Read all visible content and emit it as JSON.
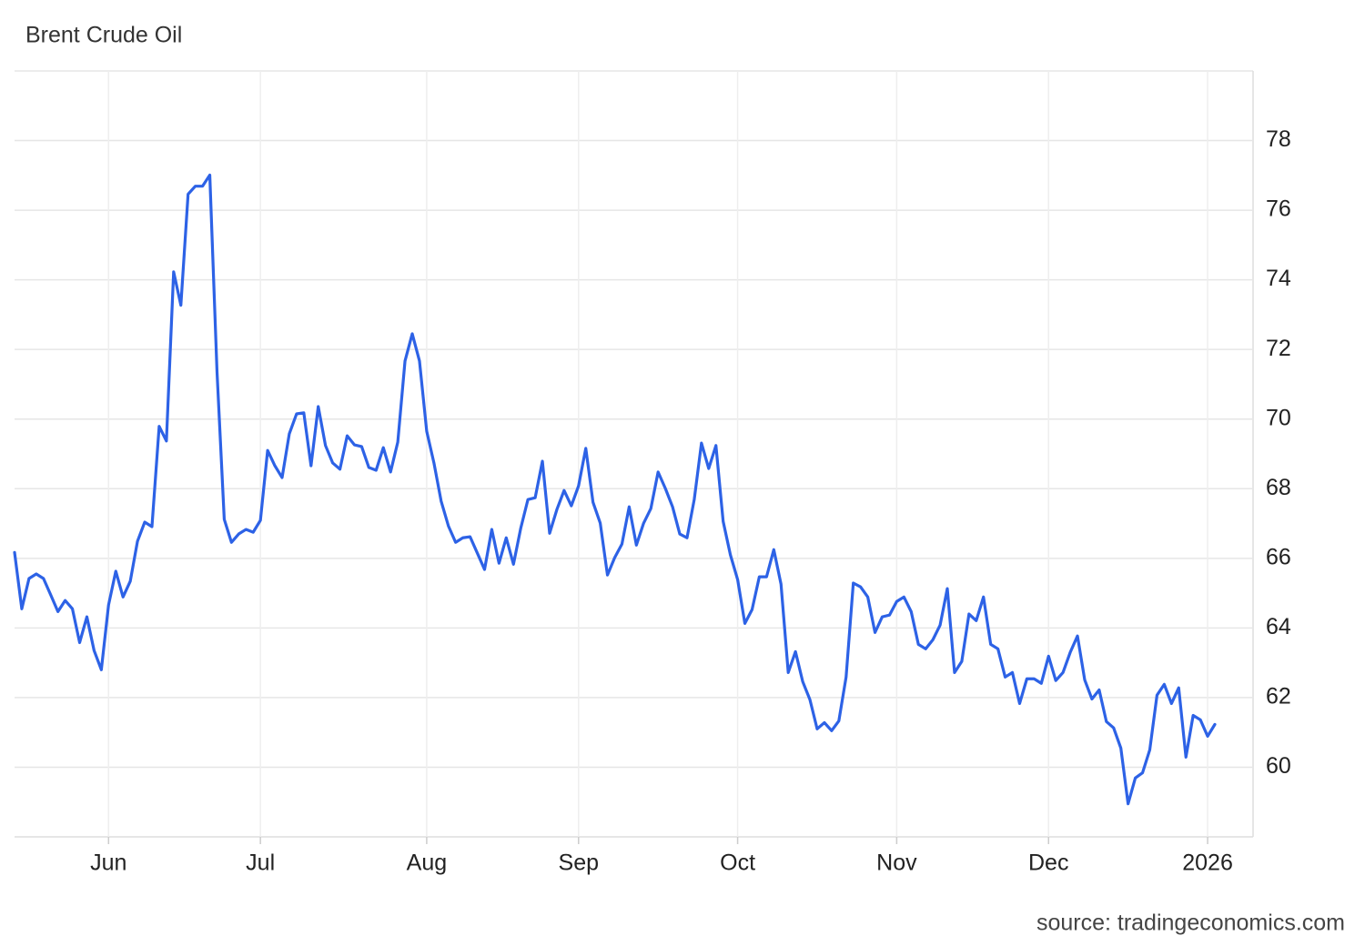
{
  "chart_data": {
    "type": "line",
    "title": "Brent Crude Oil",
    "source": "source: tradingeconomics.com",
    "categories": [
      null,
      null,
      null,
      null,
      null,
      null,
      null,
      null,
      null,
      null,
      null,
      null,
      null,
      "Jun",
      null,
      null,
      null,
      null,
      null,
      null,
      null,
      null,
      null,
      null,
      null,
      null,
      null,
      null,
      null,
      null,
      null,
      null,
      null,
      null,
      "Jul",
      null,
      null,
      null,
      null,
      null,
      null,
      null,
      null,
      null,
      null,
      null,
      null,
      null,
      null,
      null,
      null,
      null,
      null,
      null,
      null,
      null,
      null,
      "Aug",
      null,
      null,
      null,
      null,
      null,
      null,
      null,
      null,
      null,
      null,
      null,
      null,
      null,
      null,
      null,
      null,
      null,
      null,
      null,
      null,
      "Sep",
      null,
      null,
      null,
      null,
      null,
      null,
      null,
      null,
      null,
      null,
      null,
      null,
      null,
      null,
      null,
      null,
      null,
      null,
      null,
      null,
      null,
      "Oct",
      null,
      null,
      null,
      null,
      null,
      null,
      null,
      null,
      null,
      null,
      null,
      null,
      null,
      null,
      null,
      null,
      null,
      null,
      null,
      null,
      null,
      "Nov",
      null,
      null,
      null,
      null,
      null,
      null,
      null,
      null,
      null,
      null,
      null,
      null,
      null,
      null,
      null,
      null,
      null,
      null,
      null,
      null,
      "Dec",
      null,
      null,
      null,
      null,
      null,
      null,
      null,
      null,
      null,
      null,
      null,
      null,
      null,
      null,
      null,
      null,
      null,
      null,
      null,
      null,
      null,
      "2026",
      null
    ],
    "series": [
      {
        "name": "Brent Crude Oil",
        "color": "#2d62e6",
        "values": [
          66.17,
          64.55,
          65.42,
          65.55,
          65.42,
          64.95,
          64.47,
          64.79,
          64.55,
          63.58,
          64.32,
          63.35,
          62.8,
          64.66,
          65.63,
          64.89,
          65.34,
          66.49,
          67.04,
          66.91,
          69.79,
          69.37,
          74.23,
          73.27,
          76.46,
          76.69,
          76.69,
          77.01,
          71.36,
          67.12,
          66.46,
          66.7,
          66.83,
          66.75,
          67.09,
          69.1,
          68.66,
          68.32,
          69.58,
          70.15,
          70.18,
          68.66,
          70.36,
          69.24,
          68.74,
          68.56,
          69.52,
          69.26,
          69.21,
          68.61,
          68.53,
          69.18,
          68.48,
          69.34,
          71.67,
          72.45,
          71.67,
          69.65,
          68.74,
          67.64,
          66.93,
          66.46,
          66.59,
          66.62,
          66.15,
          65.68,
          66.83,
          65.86,
          66.59,
          65.83,
          66.86,
          67.69,
          67.74,
          68.79,
          66.72,
          67.4,
          67.95,
          67.51,
          68.08,
          69.16,
          67.61,
          67.01,
          65.52,
          66.02,
          66.41,
          67.48,
          66.38,
          67.01,
          67.43,
          68.48,
          68.01,
          67.48,
          66.7,
          66.59,
          67.69,
          69.31,
          68.58,
          69.24,
          67.06,
          66.1,
          65.39,
          64.13,
          64.53,
          65.47,
          65.47,
          66.25,
          65.26,
          62.72,
          63.32,
          62.46,
          61.94,
          61.1,
          61.28,
          61.05,
          61.33,
          62.59,
          65.29,
          65.18,
          64.89,
          63.87,
          64.32,
          64.37,
          64.76,
          64.89,
          64.47,
          63.53,
          63.4,
          63.66,
          64.08,
          65.13,
          62.72,
          63.04,
          64.4,
          64.21,
          64.89,
          63.53,
          63.4,
          62.59,
          62.72,
          61.83,
          62.54,
          62.54,
          62.41,
          63.19,
          62.49,
          62.72,
          63.3,
          63.77,
          62.51,
          61.96,
          62.22,
          61.31,
          61.13,
          60.55,
          58.95,
          59.69,
          59.84,
          60.5,
          62.07,
          62.38,
          61.83,
          62.28,
          60.29,
          61.49,
          61.36,
          60.89,
          61.23
        ]
      }
    ],
    "ylim": [
      58,
      80
    ],
    "yticks": [
      60,
      62,
      64,
      66,
      68,
      70,
      72,
      74,
      76,
      78
    ],
    "grid": true
  }
}
